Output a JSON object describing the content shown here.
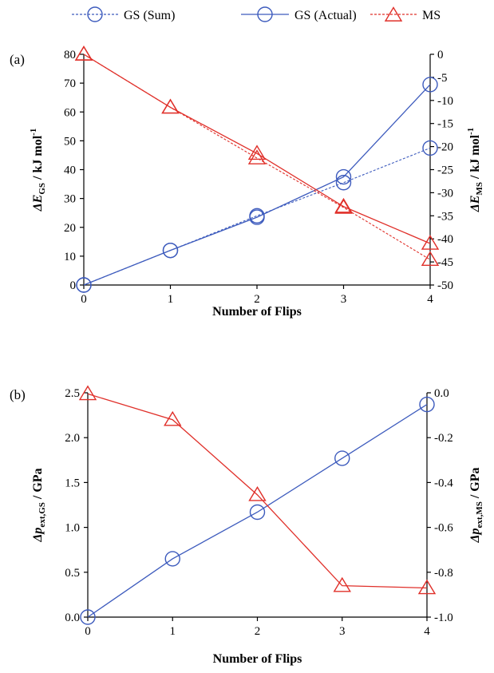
{
  "legend": {
    "items": [
      {
        "label": "GS (Sum)",
        "color": "#3d5bbd",
        "dashed": true,
        "marker": "circle"
      },
      {
        "label": "GS (Actual)",
        "color": "#3d5bbd",
        "dashed": false,
        "marker": "circle"
      },
      {
        "label": "MS",
        "color": "#e0302a",
        "dashed": true,
        "marker": "triangle"
      }
    ]
  },
  "chart_data": [
    {
      "type": "line",
      "panel_label": "(a)",
      "xlabel": "Number of Flips",
      "ylabel_left": {
        "main": "ΔE",
        "sub": "GS",
        "rest": " / kJ mol",
        "sup": "-1"
      },
      "ylabel_right": {
        "main": "ΔE",
        "sub": "MS",
        "rest": " / kJ mol",
        "sup": "-1"
      },
      "x_ticks": [
        "0",
        "1",
        "2",
        "3",
        "4"
      ],
      "xlim": [
        0,
        4
      ],
      "ylim_left": [
        0,
        80
      ],
      "ylim_right": [
        -50,
        0
      ],
      "left_ticks": [
        "0",
        "10",
        "20",
        "30",
        "40",
        "50",
        "60",
        "70",
        "80"
      ],
      "right_ticks": [
        "-50",
        "-45",
        "-40",
        "-35",
        "-30",
        "-25",
        "-20",
        "-15",
        "-10",
        "-5",
        "0"
      ],
      "series": [
        {
          "name": "GS (Sum)",
          "axis": "left",
          "color": "#3d5bbd",
          "dashed": true,
          "marker": "circle",
          "x": [
            0,
            1,
            2,
            3,
            4
          ],
          "y": [
            0,
            12,
            24,
            35.5,
            47.5
          ]
        },
        {
          "name": "GS (Actual)",
          "axis": "left",
          "color": "#3d5bbd",
          "dashed": false,
          "marker": "circle",
          "x": [
            0,
            1,
            2,
            3,
            4
          ],
          "y": [
            0,
            12,
            23.5,
            37.5,
            69.5
          ]
        },
        {
          "name": "MS (Sum)",
          "axis": "right",
          "color": "#e0302a",
          "dashed": true,
          "marker": "triangle",
          "x": [
            0,
            1,
            2,
            3,
            4
          ],
          "y": [
            0,
            -11.5,
            -22.5,
            -33.2,
            -44.5
          ]
        },
        {
          "name": "MS (Actual)",
          "axis": "right",
          "color": "#e0302a",
          "dashed": false,
          "marker": "triangle",
          "x": [
            0,
            1,
            2,
            3,
            4
          ],
          "y": [
            0,
            -11.5,
            -21.5,
            -33,
            -41
          ]
        }
      ]
    },
    {
      "type": "line",
      "panel_label": "(b)",
      "xlabel": "Number of Flips",
      "ylabel_left": {
        "main": "Δp",
        "sub": "ext,GS",
        "rest": " / GPa",
        "sup": ""
      },
      "ylabel_right": {
        "main": "Δp",
        "sub": "ext,MS",
        "rest": " / GPa",
        "sup": ""
      },
      "x_ticks": [
        "0",
        "1",
        "2",
        "3",
        "4"
      ],
      "xlim": [
        0,
        4
      ],
      "ylim_left": [
        0,
        2.5
      ],
      "ylim_right": [
        -1.0,
        0.0
      ],
      "left_ticks": [
        "0.0",
        "0.5",
        "1.0",
        "1.5",
        "2.0",
        "2.5"
      ],
      "right_ticks": [
        "-1.0",
        "-0.8",
        "-0.6",
        "-0.4",
        "-0.2",
        "0.0"
      ],
      "series": [
        {
          "name": "GS",
          "axis": "left",
          "color": "#3d5bbd",
          "dashed": false,
          "marker": "circle",
          "x": [
            0,
            1,
            2,
            3,
            4
          ],
          "y": [
            0.0,
            0.65,
            1.17,
            1.77,
            2.37
          ]
        },
        {
          "name": "MS",
          "axis": "right",
          "color": "#e0302a",
          "dashed": false,
          "marker": "triangle",
          "x": [
            0,
            1,
            2,
            3,
            4
          ],
          "y": [
            -0.005,
            -0.12,
            -0.455,
            -0.86,
            -0.87
          ]
        }
      ]
    }
  ]
}
